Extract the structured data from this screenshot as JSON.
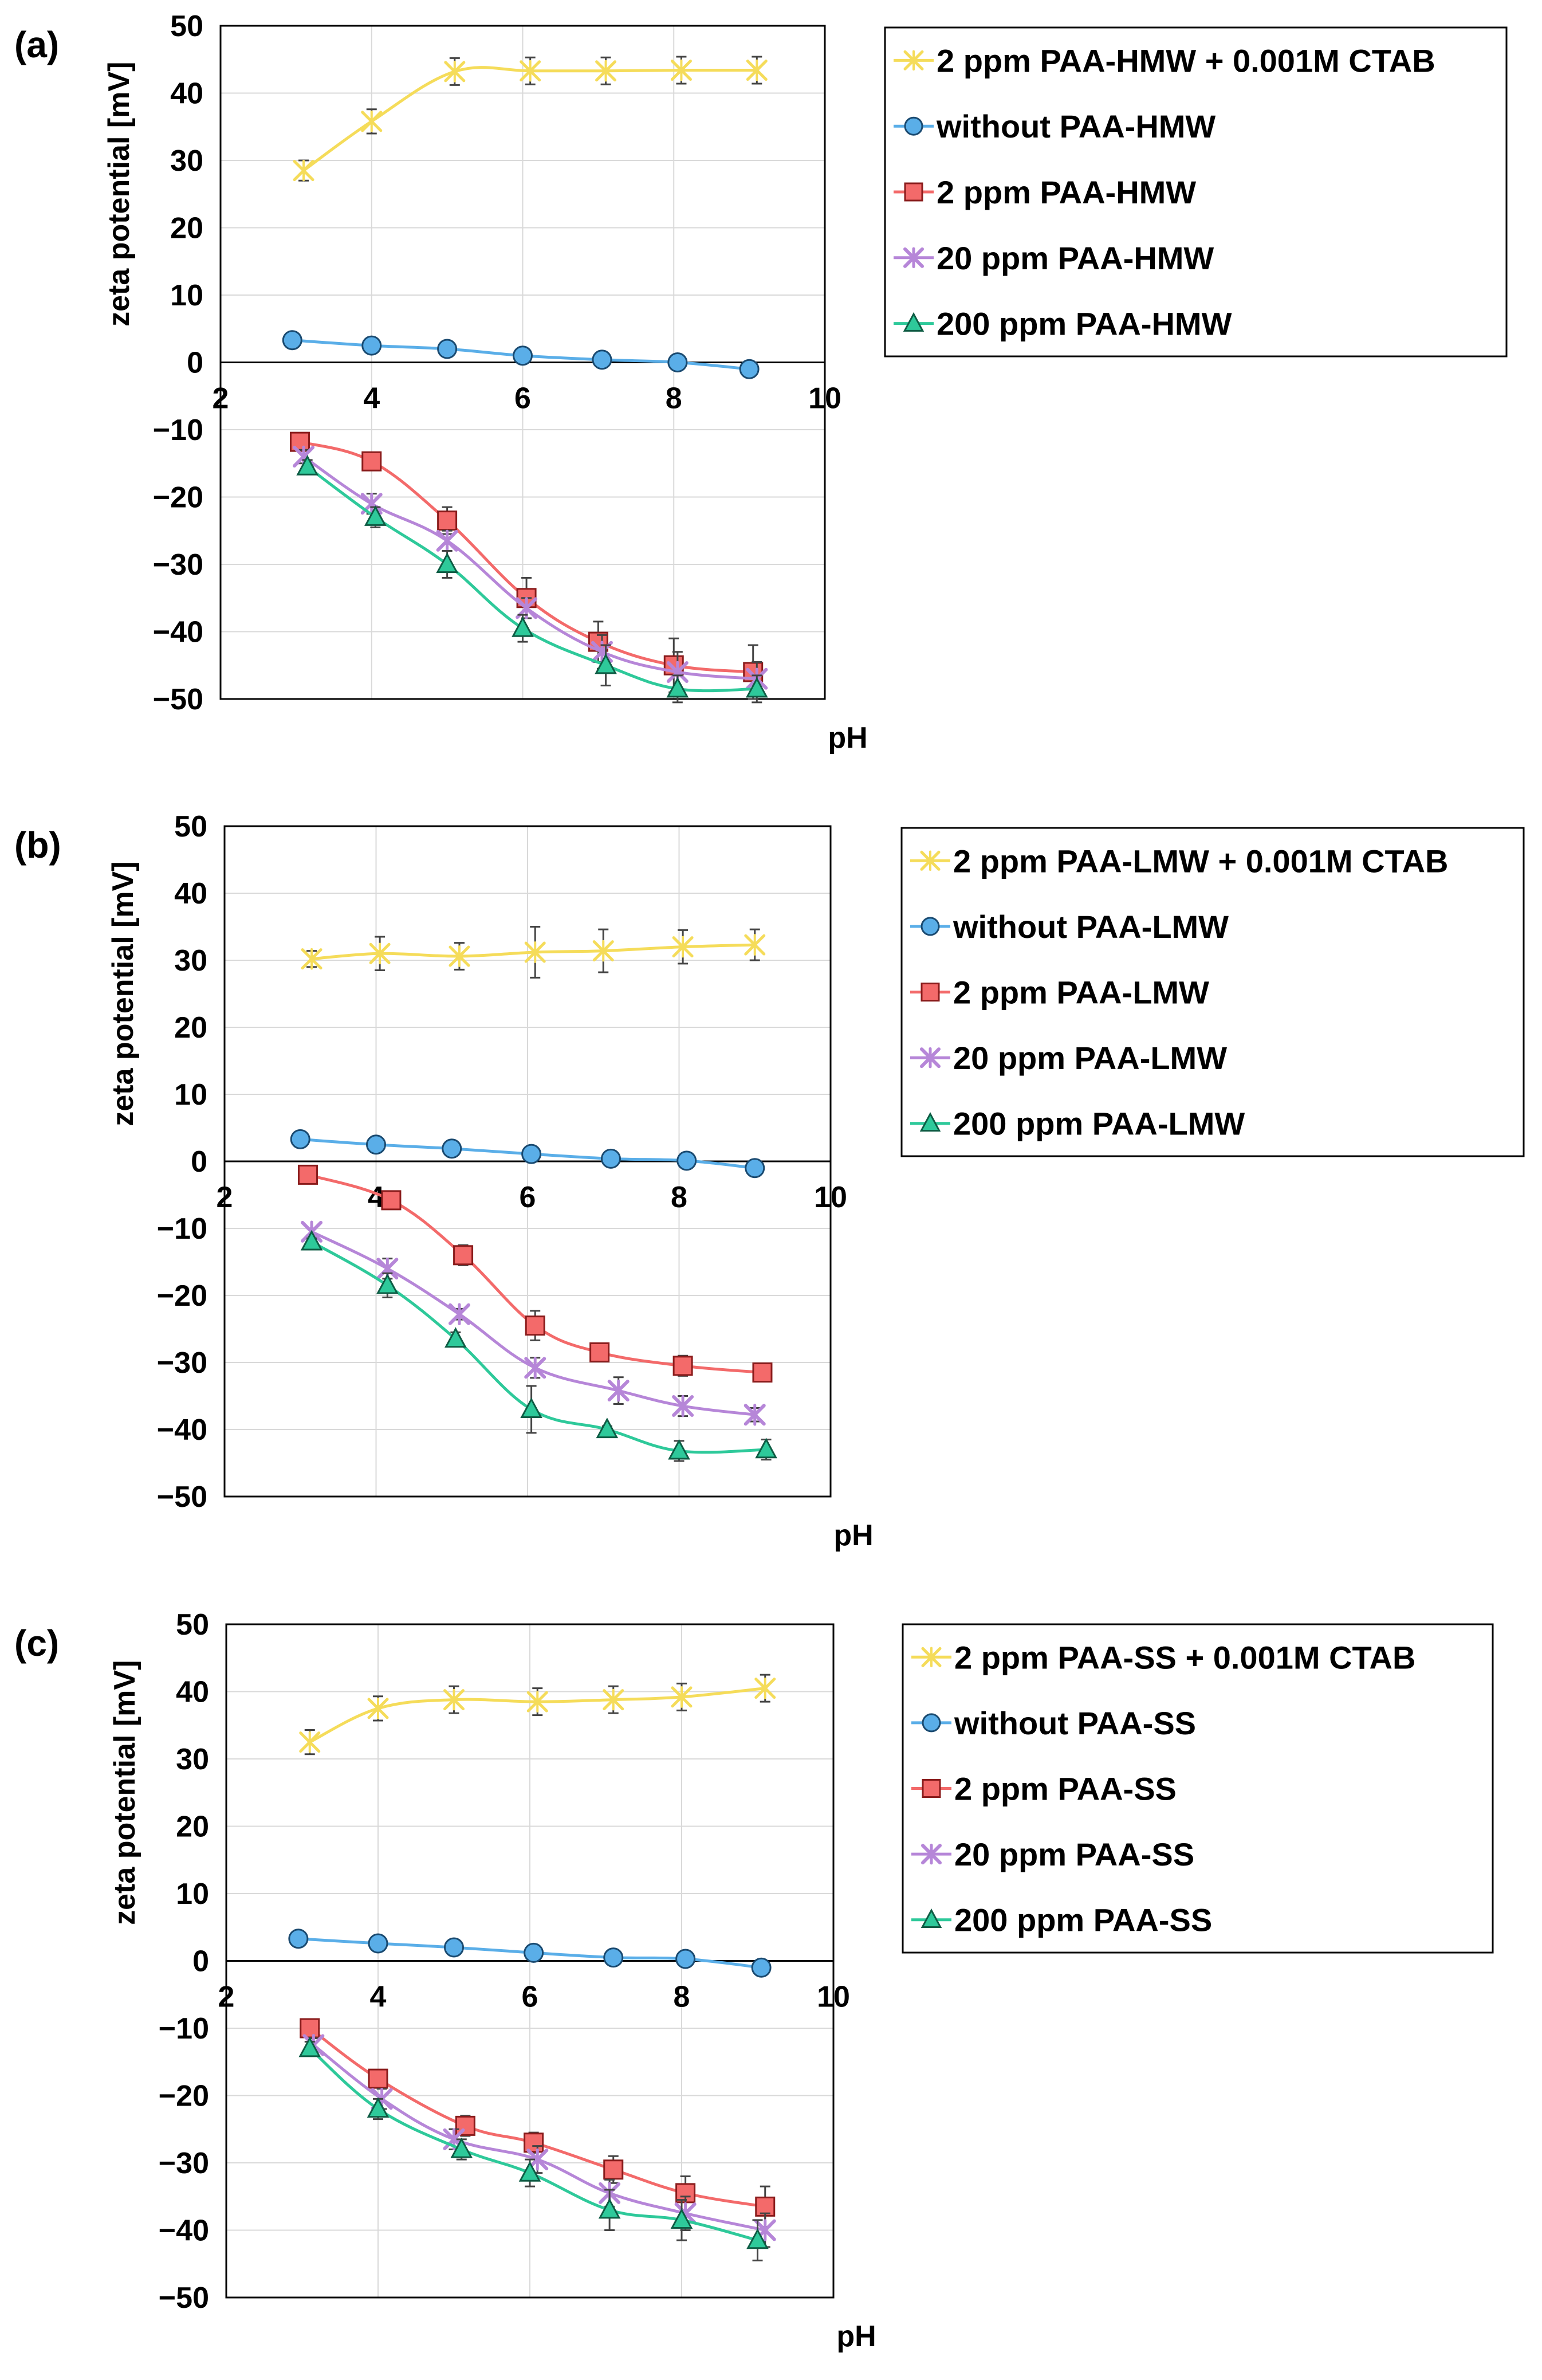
{
  "chart_data": [
    {
      "type": "line",
      "panel_label": "(a)",
      "xlabel": "pH",
      "ylabel": "zeta potential  [mV]",
      "xlim": [
        2,
        10
      ],
      "ylim": [
        -50,
        50
      ],
      "xticks": [
        2,
        4,
        6,
        8,
        10
      ],
      "yticks": [
        50,
        40,
        30,
        20,
        10,
        0,
        -10,
        -20,
        -30,
        -40,
        -50
      ],
      "legend_position": "right",
      "series": [
        {
          "name": "2 ppm PAA-HMW + 0.001M CTAB",
          "marker": "star",
          "color": "#f5dc5a",
          "x": [
            3.1,
            4.0,
            5.1,
            6.1,
            7.1,
            8.1,
            9.1
          ],
          "y": [
            28.5,
            35.8,
            43.2,
            43.3,
            43.3,
            43.4,
            43.4
          ],
          "err": [
            1.5,
            1.8,
            2.0,
            2.0,
            2.0,
            2.0,
            2.0
          ]
        },
        {
          "name": "without PAA-HMW",
          "marker": "circle",
          "color": "#5aaee8",
          "x": [
            2.95,
            4.0,
            5.0,
            6.0,
            7.05,
            8.05,
            9.0
          ],
          "y": [
            3.3,
            2.5,
            2.0,
            1.0,
            0.4,
            0.0,
            -1.0
          ],
          "err": [
            0,
            0,
            0,
            0,
            0,
            0,
            0
          ]
        },
        {
          "name": "2 ppm PAA-HMW",
          "marker": "square",
          "color": "#f36a6a",
          "x": [
            3.05,
            4.0,
            5.0,
            6.05,
            7.0,
            8.0,
            9.05
          ],
          "y": [
            -11.8,
            -14.7,
            -23.5,
            -35.0,
            -41.5,
            -45.0,
            -46.0
          ],
          "err": [
            1.0,
            1.0,
            2.0,
            3.0,
            3.0,
            4.0,
            4.0
          ]
        },
        {
          "name": "20 ppm PAA-HMW",
          "marker": "x-star",
          "color": "#b686d8",
          "x": [
            3.1,
            4.0,
            5.0,
            6.05,
            7.05,
            8.05,
            9.1
          ],
          "y": [
            -14.0,
            -21.0,
            -26.5,
            -36.5,
            -43.0,
            -46.0,
            -47.0
          ],
          "err": [
            1.0,
            1.5,
            1.5,
            1.5,
            2.5,
            3.0,
            2.5
          ]
        },
        {
          "name": "200 ppm PAA-HMW",
          "marker": "triangle",
          "color": "#2ec99a",
          "x": [
            3.15,
            4.05,
            5.0,
            6.0,
            7.1,
            8.05,
            9.1
          ],
          "y": [
            -15.5,
            -23.0,
            -30.0,
            -39.5,
            -45.0,
            -48.5,
            -48.5
          ],
          "err": [
            1.0,
            1.5,
            2.0,
            2.0,
            3.0,
            2.0,
            2.0
          ]
        }
      ]
    },
    {
      "type": "line",
      "panel_label": "(b)",
      "xlabel": "pH",
      "ylabel": "zeta potential  [mV]",
      "xlim": [
        2,
        10
      ],
      "ylim": [
        -50,
        50
      ],
      "xticks": [
        2,
        4,
        6,
        8,
        10
      ],
      "yticks": [
        50,
        40,
        30,
        20,
        10,
        0,
        -10,
        -20,
        -30,
        -40,
        -50
      ],
      "legend_position": "right",
      "series": [
        {
          "name": "2 ppm PAA-LMW  + 0.001M CTAB",
          "marker": "star",
          "color": "#f5dc5a",
          "x": [
            3.15,
            4.05,
            5.1,
            6.1,
            7.0,
            8.05,
            9.0
          ],
          "y": [
            30.2,
            31.0,
            30.6,
            31.2,
            31.4,
            32.0,
            32.3
          ],
          "err": [
            1.2,
            2.5,
            2.0,
            3.8,
            3.2,
            2.5,
            2.3
          ]
        },
        {
          "name": "without PAA-LMW",
          "marker": "circle",
          "color": "#5aaee8",
          "x": [
            3.0,
            4.0,
            5.0,
            6.05,
            7.1,
            8.1,
            9.0
          ],
          "y": [
            3.3,
            2.5,
            1.9,
            1.1,
            0.4,
            0.1,
            -1.0
          ],
          "err": [
            0,
            0,
            0,
            0,
            0,
            0,
            0
          ]
        },
        {
          "name": "2 ppm PAA-LMW",
          "marker": "square",
          "color": "#f36a6a",
          "x": [
            3.1,
            4.2,
            5.15,
            6.1,
            6.95,
            8.05,
            9.1
          ],
          "y": [
            -2.0,
            -5.8,
            -14.0,
            -24.5,
            -28.5,
            -30.5,
            -31.5
          ],
          "err": [
            0.5,
            1.0,
            1.5,
            2.2,
            1.0,
            1.5,
            1.0
          ]
        },
        {
          "name": "20 ppm PAA-LMW",
          "marker": "x-star",
          "color": "#b686d8",
          "x": [
            3.15,
            4.15,
            5.1,
            6.1,
            7.2,
            8.05,
            9.0
          ],
          "y": [
            -10.5,
            -16.0,
            -22.8,
            -30.8,
            -34.2,
            -36.5,
            -37.8
          ],
          "err": [
            0.5,
            1.5,
            0.8,
            1.5,
            2.0,
            1.5,
            1.0
          ]
        },
        {
          "name": "200 ppm PAA-LMW",
          "marker": "triangle",
          "color": "#2ec99a",
          "x": [
            3.15,
            4.15,
            5.05,
            6.05,
            7.05,
            8.0,
            9.15
          ],
          "y": [
            -12.0,
            -18.5,
            -26.5,
            -37.0,
            -40.0,
            -43.2,
            -43.0
          ],
          "err": [
            0.5,
            1.8,
            1.0,
            3.5,
            0.5,
            1.5,
            1.5
          ]
        }
      ]
    },
    {
      "type": "line",
      "panel_label": "(c)",
      "xlabel": "pH",
      "ylabel": "zeta potential  [mV]",
      "xlim": [
        2,
        10
      ],
      "ylim": [
        -50,
        50
      ],
      "xticks": [
        2,
        4,
        6,
        8,
        10
      ],
      "yticks": [
        50,
        40,
        30,
        20,
        10,
        0,
        -10,
        -20,
        -30,
        -40,
        -50
      ],
      "legend_position": "right",
      "series": [
        {
          "name": "2 ppm PAA-SS + 0.001M CTAB",
          "marker": "star",
          "color": "#f5dc5a",
          "x": [
            3.1,
            4.0,
            5.0,
            6.1,
            7.1,
            8.0,
            9.1
          ],
          "y": [
            32.5,
            37.5,
            38.8,
            38.5,
            38.8,
            39.2,
            40.5
          ],
          "err": [
            1.8,
            1.8,
            2.0,
            2.0,
            2.0,
            2.0,
            2.0
          ]
        },
        {
          "name": "without PAA-SS",
          "marker": "circle",
          "color": "#5aaee8",
          "x": [
            2.95,
            4.0,
            5.0,
            6.05,
            7.1,
            8.05,
            9.05
          ],
          "y": [
            3.3,
            2.6,
            2.0,
            1.2,
            0.5,
            0.3,
            -1.0
          ],
          "err": [
            0,
            0,
            0,
            0,
            0,
            0,
            0
          ]
        },
        {
          "name": "2 ppm PAA-SS",
          "marker": "square",
          "color": "#f36a6a",
          "x": [
            3.1,
            4.0,
            5.15,
            6.05,
            7.1,
            8.05,
            9.1
          ],
          "y": [
            -10.0,
            -17.5,
            -24.5,
            -27.0,
            -31.0,
            -34.5,
            -36.5
          ],
          "err": [
            1.0,
            1.0,
            1.5,
            1.5,
            2.0,
            2.5,
            3.0
          ]
        },
        {
          "name": "20 ppm PAA-SS",
          "marker": "x-star",
          "color": "#b686d8",
          "x": [
            3.15,
            4.05,
            5.0,
            6.1,
            7.05,
            8.05,
            9.1
          ],
          "y": [
            -12.5,
            -20.5,
            -26.5,
            -29.5,
            -34.5,
            -37.5,
            -40.0
          ],
          "err": [
            1.0,
            1.5,
            1.5,
            2.0,
            2.0,
            2.5,
            2.5
          ]
        },
        {
          "name": "200 ppm PAA-SS",
          "marker": "triangle",
          "color": "#2ec99a",
          "x": [
            3.1,
            4.0,
            5.1,
            6.0,
            7.05,
            8.0,
            9.0
          ],
          "y": [
            -13.0,
            -22.0,
            -28.0,
            -31.5,
            -37.0,
            -38.5,
            -41.5
          ],
          "err": [
            1.0,
            1.5,
            1.5,
            2.0,
            3.0,
            3.0,
            3.0
          ]
        }
      ]
    }
  ]
}
